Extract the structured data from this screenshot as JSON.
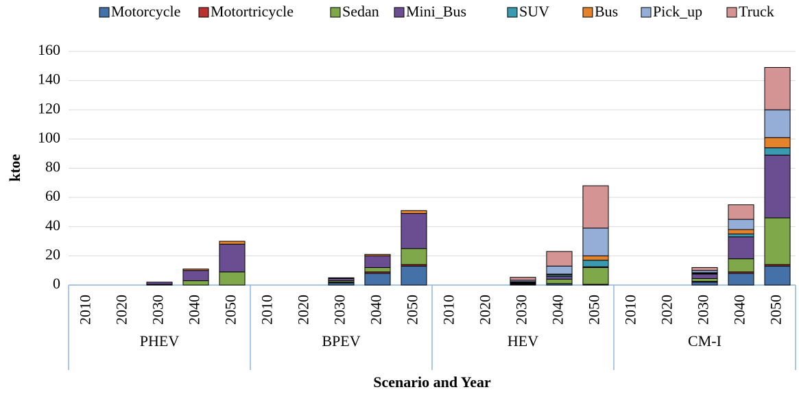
{
  "chart_data": {
    "type": "stacked_bar",
    "legend_position": "top",
    "y_label": "ktoe",
    "x_label": "Scenario and Year",
    "categories": [
      "2010",
      "2020",
      "2030",
      "2040",
      "2050",
      "2010",
      "2020",
      "2030",
      "2040",
      "2050",
      "2010",
      "2020",
      "2030",
      "2040",
      "2050",
      "2010",
      "2020",
      "2030",
      "2040",
      "2050"
    ],
    "groups": [
      "PHEV",
      "BPEV",
      "HEV",
      "CM-I"
    ],
    "ylim": [
      0,
      160
    ],
    "yticks": [
      0,
      20,
      40,
      60,
      80,
      100,
      120,
      140,
      160
    ],
    "grid": true,
    "series": [
      {
        "name": "Motorcycle",
        "color": "#4472a8",
        "values": [
          0,
          0,
          0,
          0,
          0,
          0,
          0,
          1.5,
          8,
          13,
          0,
          0,
          0.5,
          1,
          0.5,
          0,
          0,
          2,
          8,
          13
        ]
      },
      {
        "name": "Motortricycle",
        "color": "#b83232",
        "values": [
          0,
          0,
          0,
          0,
          0,
          0,
          0,
          0.5,
          1,
          1,
          0,
          0,
          0,
          0,
          0,
          0,
          0,
          0.5,
          1,
          1
        ]
      },
      {
        "name": "Sedan",
        "color": "#7ea84a",
        "values": [
          0,
          0,
          0.5,
          3,
          9,
          0,
          0,
          1,
          3,
          11,
          0,
          0,
          0.5,
          3,
          11.5,
          0,
          0,
          2,
          9,
          32
        ]
      },
      {
        "name": "Mini_Bus",
        "color": "#6b4e92",
        "values": [
          0,
          0,
          1.5,
          7,
          19,
          0,
          0,
          1.5,
          8,
          24,
          0,
          0,
          0.5,
          2,
          0.5,
          0,
          0,
          3,
          15,
          43
        ]
      },
      {
        "name": "SUV",
        "color": "#3a9bb0",
        "values": [
          0,
          0,
          0,
          0,
          0,
          0,
          0,
          0,
          0,
          0,
          0,
          0,
          0.5,
          1,
          4.5,
          0,
          0,
          0.5,
          2,
          5
        ]
      },
      {
        "name": "Bus",
        "color": "#e5822c",
        "values": [
          0,
          0,
          0,
          1,
          2,
          0,
          0,
          0.5,
          1,
          2,
          0,
          0,
          0.3,
          0.5,
          3,
          0,
          0,
          0.5,
          3,
          7
        ]
      },
      {
        "name": "Pick_up",
        "color": "#95aed8",
        "values": [
          0,
          0,
          0,
          0,
          0,
          0,
          0,
          0,
          0,
          0,
          0,
          0,
          1,
          5.5,
          19,
          0,
          0,
          1.5,
          7,
          19
        ]
      },
      {
        "name": "Truck",
        "color": "#d49494",
        "values": [
          0,
          0,
          0,
          0,
          0,
          0,
          0,
          0,
          0,
          0,
          0,
          0,
          2,
          10,
          29,
          0,
          0,
          2,
          10,
          29
        ]
      }
    ]
  }
}
